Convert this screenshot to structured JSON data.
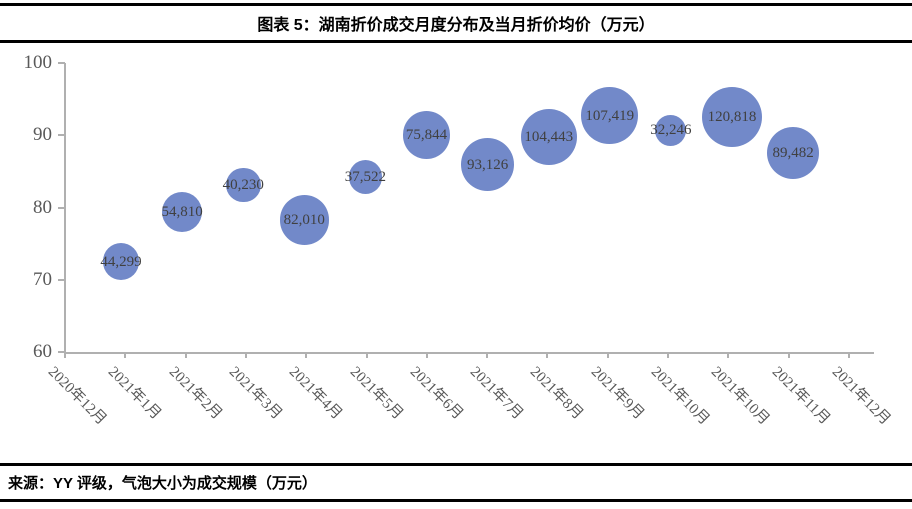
{
  "header": {
    "title": "图表 5：湖南折价成交月度分布及当月折价均价（万元）"
  },
  "footer": {
    "source_note": "来源：YY 评级，气泡大小为成交规模（万元）"
  },
  "chart_data": {
    "type": "scatter",
    "subtype": "bubble",
    "title": "图表 5：湖南折价成交月度分布及当月折价均价（万元）",
    "xlabel": "",
    "ylabel": "",
    "ylim": [
      60,
      100
    ],
    "y_ticks": [
      100,
      90,
      80,
      70,
      60
    ],
    "grid": false,
    "legend": false,
    "size_note": "气泡大小为成交规模（万元）",
    "colors": {
      "bubble_fill": "#7289c9",
      "axis_line": "#b0b0b0",
      "tick_label": "#595959",
      "data_label": "#404040",
      "rule_black": "#000000"
    },
    "x_tick_labels": [
      "2020年12月",
      "2021年1月",
      "2021年2月",
      "2021年3月",
      "2021年4月",
      "2021年5月",
      "2021年6月",
      "2021年7月",
      "2021年8月",
      "2021年9月",
      "2021年10月",
      "2021年10月",
      "2021年11月",
      "2021年12月"
    ],
    "points": [
      {
        "month": "2020年12月",
        "avg_price": 72.5,
        "volume": 44299,
        "volume_label": "44,299"
      },
      {
        "month": "2021年1月",
        "avg_price": 79.4,
        "volume": 54810,
        "volume_label": "54,810"
      },
      {
        "month": "2021年2月",
        "avg_price": 83.1,
        "volume": 40230,
        "volume_label": "40,230"
      },
      {
        "month": "2021年3月",
        "avg_price": 78.3,
        "volume": 82010,
        "volume_label": "82,010"
      },
      {
        "month": "2021年4月",
        "avg_price": 84.2,
        "volume": 37522,
        "volume_label": "37,522"
      },
      {
        "month": "2021年5月",
        "avg_price": 90.0,
        "volume": 75844,
        "volume_label": "75,844"
      },
      {
        "month": "2021年6月",
        "avg_price": 85.9,
        "volume": 93126,
        "volume_label": "93,126"
      },
      {
        "month": "2021年7月",
        "avg_price": 89.8,
        "volume": 104443,
        "volume_label": "104,443"
      },
      {
        "month": "2021年8月",
        "avg_price": 92.7,
        "volume": 107419,
        "volume_label": "107,419"
      },
      {
        "month": "2021年9月",
        "avg_price": 90.7,
        "volume": 32246,
        "volume_label": "32,246"
      },
      {
        "month": "2021年10月",
        "avg_price": 92.5,
        "volume": 120818,
        "volume_label": "120,818"
      },
      {
        "month": "2021年11月",
        "avg_price": 87.5,
        "volume": 89482,
        "volume_label": "89,482"
      }
    ]
  }
}
